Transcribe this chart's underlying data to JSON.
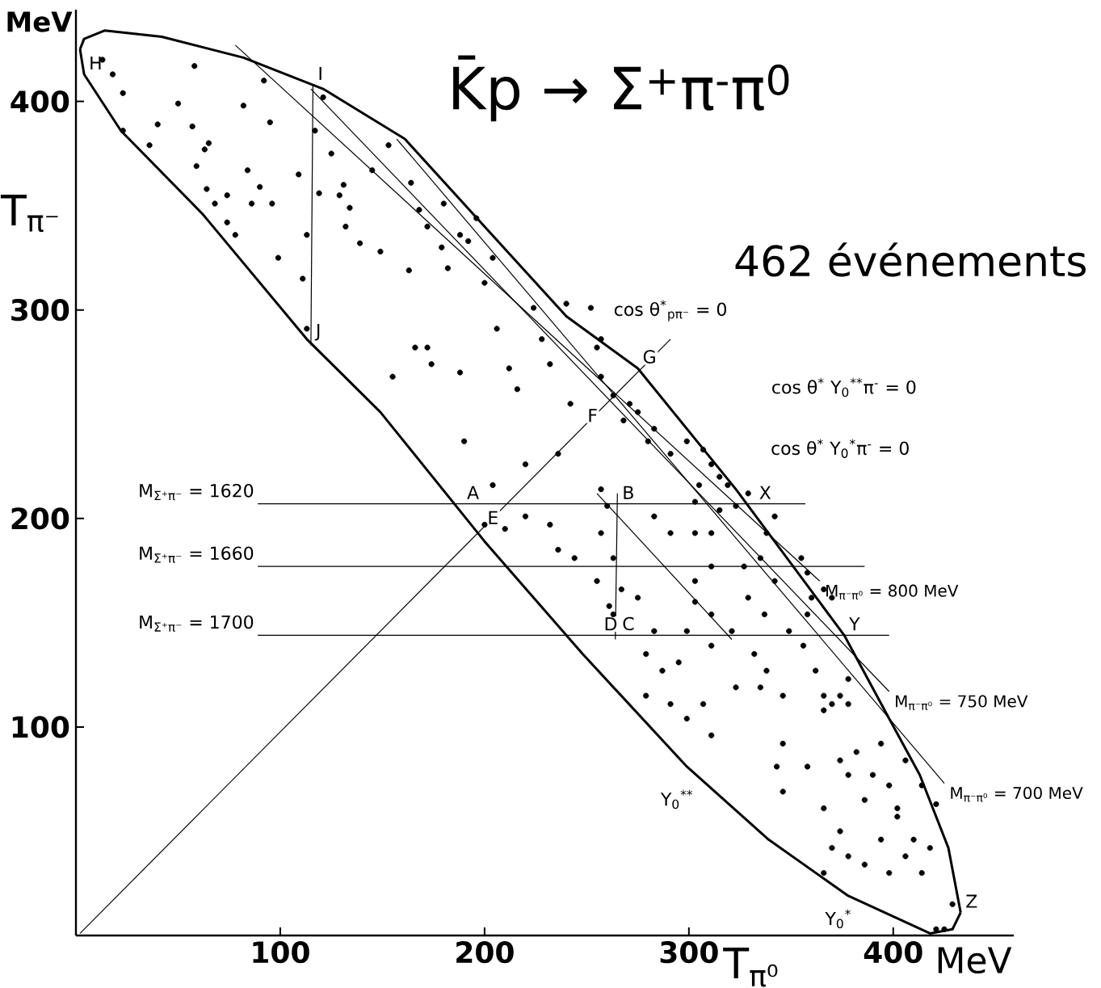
{
  "chart_data": {
    "type": "scatter",
    "title": "K̄p → Σ$^{+}$π$^{-}$π$^{0}$",
    "subtitle": "462 événements",
    "xlabel": "T$_{π⁰}$",
    "ylabel": "T$_{π⁻}$",
    "xlim": [
      0,
      459
    ],
    "ylim": [
      0,
      444
    ],
    "xticks": [
      100,
      200,
      300,
      400
    ],
    "yticks": [
      100,
      200,
      300,
      400
    ],
    "grid": false,
    "annotations": [
      "MeV",
      "MeV",
      "cos θ$^{*}$$_{pπ⁻}$ = 0",
      "cos θ$^{*}$ Y$_{0}$$^{**}$π$^{-}$ = 0",
      "cos θ$^{*}$ Y$_{0}$$^{*}$π$^{-}$ = 0",
      "Y$_{0}$$^{**}$",
      "Y$_{0}$$^{*}$",
      {
        "text": "A",
        "x": 189,
        "y": 207
      },
      {
        "text": "B",
        "x": 265,
        "y": 207
      },
      {
        "text": "C",
        "x": 265,
        "y": 144
      },
      {
        "text": "D",
        "x": 256,
        "y": 144
      },
      {
        "text": "E",
        "x": 199,
        "y": 195
      },
      {
        "text": "F",
        "x": 248,
        "y": 244
      },
      {
        "text": "G",
        "x": 275,
        "y": 272
      },
      {
        "text": "H",
        "x": 4,
        "y": 413
      },
      {
        "text": "I",
        "x": 116,
        "y": 408
      },
      {
        "text": "J",
        "x": 115,
        "y": 283
      },
      {
        "text": "X",
        "x": 332,
        "y": 207
      },
      {
        "text": "Y",
        "x": 376,
        "y": 144
      },
      {
        "text": "Z",
        "x": 433,
        "y": 11
      }
    ],
    "series": [
      {
        "type": "scatter",
        "marker": "circle",
        "color": "#000000",
        "x": [
          13,
          18,
          23,
          23,
          36,
          40,
          50,
          58,
          57,
          59,
          64,
          63,
          65,
          68,
          74,
          74,
          78,
          82,
          84,
          86,
          90,
          92,
          95,
          96,
          99,
          109,
          111,
          113,
          113,
          117,
          119,
          121,
          125,
          129,
          131,
          134,
          132,
          139,
          145,
          149,
          153,
          155,
          163,
          164,
          166,
          168,
          172,
          172,
          174,
          179,
          180,
          182,
          188,
          188,
          190,
          192,
          196,
          200,
          204,
          206,
          212,
          216,
          220,
          224,
          228,
          232,
          236,
          240,
          242,
          252,
          255,
          257,
          263,
          268,
          271,
          275,
          283,
          280,
          291,
          299,
          307,
          311,
          315,
          305,
          319,
          323,
          329,
          315,
          204,
          200,
          210,
          220,
          232,
          236,
          244,
          257,
          260,
          257,
          263,
          255,
          261,
          267,
          263,
          275,
          283,
          279,
          287,
          279,
          283,
          291,
          303,
          303,
          311,
          311,
          303,
          303,
          299,
          311,
          311,
          321,
          327,
          329,
          335,
          337,
          342,
          338,
          342,
          355,
          358,
          358,
          349,
          360,
          370,
          366,
          295,
          291,
          299,
          307,
          311,
          323,
          332,
          335,
          338,
          346,
          346,
          356,
          362,
          366,
          370,
          374,
          378,
          366,
          378,
          343,
          346,
          358,
          366,
          374,
          378,
          382,
          386,
          390,
          394,
          398,
          402,
          406,
          410,
          414,
          421,
          370,
          374,
          378,
          386,
          394,
          398,
          406,
          414,
          418,
          429,
          421,
          425,
          402,
          366,
          257
        ],
        "values": [
          420,
          413,
          404,
          386,
          379,
          389,
          399,
          417,
          388,
          369,
          358,
          377,
          380,
          351,
          342,
          355,
          336,
          398,
          367,
          351,
          359,
          410,
          390,
          351,
          325,
          365,
          315,
          336,
          291,
          386,
          356,
          402,
          375,
          355,
          360,
          349,
          340,
          332,
          367,
          328,
          379,
          268,
          319,
          361,
          282,
          348,
          282,
          340,
          274,
          330,
          351,
          320,
          336,
          270,
          237,
          333,
          344,
          313,
          325,
          291,
          272,
          262,
          226,
          301,
          286,
          274,
          231,
          303,
          255,
          301,
          282,
          268,
          259,
          247,
          255,
          251,
          243,
          237,
          231,
          237,
          233,
          226,
          220,
          216,
          216,
          206,
          212,
          204,
          216,
          197,
          195,
          201,
          197,
          185,
          181,
          214,
          206,
          193,
          181,
          170,
          158,
          166,
          154,
          162,
          146,
          135,
          127,
          115,
          201,
          193,
          208,
          193,
          193,
          177,
          170,
          160,
          146,
          154,
          139,
          146,
          177,
          162,
          181,
          154,
          170,
          193,
          201,
          181,
          174,
          154,
          146,
          162,
          162,
          166,
          131,
          111,
          104,
          111,
          96,
          119,
          135,
          119,
          127,
          115,
          92,
          139,
          127,
          115,
          111,
          115,
          111,
          108,
          123,
          81,
          69,
          81,
          61,
          84,
          77,
          88,
          65,
          77,
          92,
          72,
          61,
          84,
          46,
          72,
          63,
          42,
          50,
          38,
          34,
          46,
          30,
          38,
          30,
          42,
          15,
          3,
          3,
          57,
          30,
          286
        ]
      },
      {
        "type": "line",
        "color": "#000000",
        "x": [
          2,
          4,
          14,
          42,
          82,
          121,
          161,
          200,
          240,
          275,
          323,
          376,
          398,
          413,
          427,
          433
        ],
        "values": [
          425,
          430,
          434,
          431,
          421,
          406,
          382,
          340,
          297,
          272,
          214,
          144,
          104,
          77,
          42,
          11
        ]
      },
      {
        "type": "line",
        "color": "#000000",
        "x": [
          2,
          4,
          22,
          62,
          113,
          149,
          200,
          248,
          299,
          339,
          378,
          418,
          429,
          433
        ],
        "values": [
          425,
          413,
          386,
          346,
          286,
          251,
          189,
          135,
          81,
          46,
          19,
          1,
          3,
          11
        ]
      },
      {
        "type": "line",
        "color": "#000000",
        "name": "M$_{π⁻π⁰}$ = 800 MeV",
        "x": [
          78,
          364
        ],
        "values": [
          427,
          170
        ]
      },
      {
        "type": "line",
        "color": "#000000",
        "name": "M$_{π⁻π⁰}$ = 750 MeV",
        "x": [
          115,
          398
        ],
        "values": [
          406,
          117
        ]
      },
      {
        "type": "line",
        "color": "#000000",
        "name": "M$_{π⁻π⁰}$ = 700 MeV",
        "x": [
          157,
          425
        ],
        "values": [
          382,
          73
        ]
      },
      {
        "type": "line",
        "color": "#000000",
        "name": "M$_{Σ⁺π⁻}$ = 1620",
        "x": [
          89,
          357
        ],
        "values": [
          207,
          207
        ]
      },
      {
        "type": "line",
        "color": "#000000",
        "name": "M$_{Σ⁺π⁻}$ = 1660",
        "x": [
          89,
          386
        ],
        "values": [
          177,
          177
        ]
      },
      {
        "type": "line",
        "color": "#000000",
        "name": "M$_{Σ⁺π⁻}$ = 1700",
        "x": [
          89,
          398
        ],
        "values": [
          144,
          144
        ]
      },
      {
        "type": "line",
        "color": "#000000",
        "x": [
          2,
          291
        ],
        "values": [
          1,
          286
        ]
      },
      {
        "type": "line",
        "color": "#000000",
        "x": [
          115,
          116
        ],
        "values": [
          283,
          408
        ]
      },
      {
        "type": "line",
        "color": "#000000",
        "x": [
          264,
          265
        ],
        "values": [
          142,
          212
        ]
      },
      {
        "type": "line",
        "color": "#000000",
        "x": [
          255,
          321
        ],
        "values": [
          212,
          142
        ]
      }
    ]
  }
}
